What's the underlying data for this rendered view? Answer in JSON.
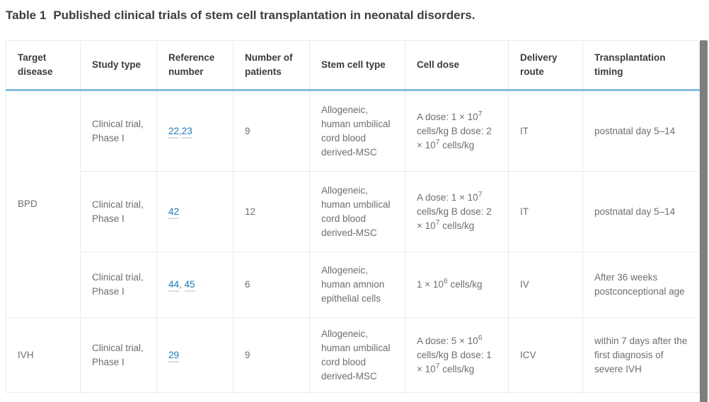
{
  "title": {
    "label": "Table 1",
    "caption": "Published clinical trials of stem cell transplantation in neonatal disorders."
  },
  "colors": {
    "accent_blue": "#82bde2",
    "link_blue": "#1b78b8",
    "header_text": "#3b3b3b",
    "body_text": "#6e6e6e",
    "border_gray": "#ebebeb",
    "scrollbar_gray": "#7e7e7e"
  },
  "table": {
    "columns": [
      "Target disease",
      "Study type",
      "Reference number",
      "Number of patients",
      "Stem cell type",
      "Cell dose",
      "Delivery route",
      "Transplantation timing"
    ],
    "groups": [
      {
        "disease": "BPD",
        "rows": [
          {
            "study_type": "Clinical trial, Phase I",
            "references": {
              "links": [
                "22",
                "23"
              ],
              "separator": ","
            },
            "patients": "9",
            "stem_cell_type": "Allogeneic, human umbilical cord blood derived-MSC",
            "cell_dose": [
              {
                "text": "A dose: 1 × 10"
              },
              {
                "sup": "7"
              },
              {
                "text": " cells/kg B dose: 2 × 10"
              },
              {
                "sup": "7"
              },
              {
                "text": " cells/kg"
              }
            ],
            "delivery_route": "IT",
            "timing": "postnatal day 5–14"
          },
          {
            "study_type": "Clinical trial, Phase I",
            "references": {
              "links": [
                "42"
              ],
              "separator": ""
            },
            "patients": "12",
            "stem_cell_type": "Allogeneic, human umbilical cord blood derived-MSC",
            "cell_dose": [
              {
                "text": "A dose: 1 × 10"
              },
              {
                "sup": "7"
              },
              {
                "text": " cells/kg B dose: 2 × 10"
              },
              {
                "sup": "7"
              },
              {
                "text": " cells/kg"
              }
            ],
            "delivery_route": "IT",
            "timing": "postnatal day 5–14"
          },
          {
            "study_type": "Clinical trial, Phase I",
            "references": {
              "links": [
                "44",
                "45"
              ],
              "separator": ", "
            },
            "patients": "6",
            "stem_cell_type": "Allogeneic, human amnion epithelial cells",
            "cell_dose": [
              {
                "text": "1 × 10"
              },
              {
                "sup": "6"
              },
              {
                "text": " cells/kg"
              }
            ],
            "delivery_route": "IV",
            "timing": "After 36 weeks postconceptional age"
          }
        ]
      },
      {
        "disease": "IVH",
        "rows": [
          {
            "study_type": "Clinical trial, Phase I",
            "references": {
              "links": [
                "29"
              ],
              "separator": ""
            },
            "patients": "9",
            "stem_cell_type": "Allogeneic, human umbilical cord blood derived-MSC",
            "cell_dose": [
              {
                "text": "A dose: 5 × 10"
              },
              {
                "sup": "6"
              },
              {
                "text": " cells/kg B dose: 1 × 10"
              },
              {
                "sup": "7"
              },
              {
                "text": " cells/kg"
              }
            ],
            "delivery_route": "ICV",
            "timing": "within 7 days after the first diagnosis of severe IVH"
          }
        ]
      }
    ]
  }
}
